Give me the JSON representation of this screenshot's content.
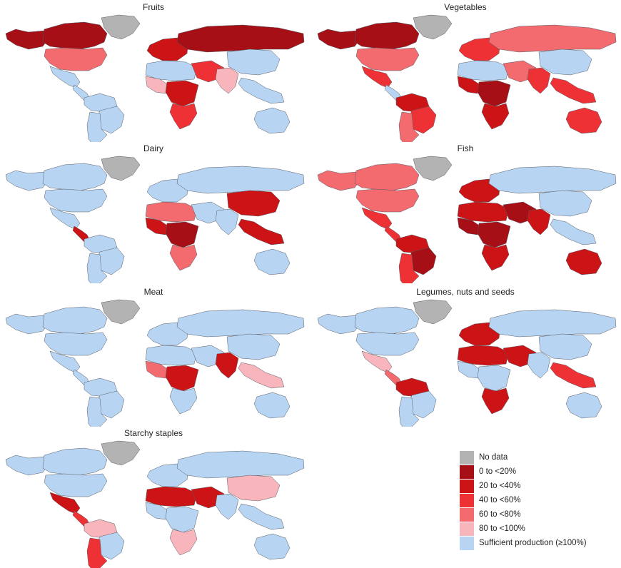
{
  "colors": {
    "no_data": "#b3b3b3",
    "c0": "#a50f15",
    "c20": "#cc1417",
    "c40": "#ee3134",
    "c60": "#f36b6e",
    "c80": "#f8b5bb",
    "ok": "#b7d5f3",
    "border": "#555b66"
  },
  "panels": [
    {
      "id": "fruits",
      "title": "Fruits",
      "fills": {
        "na": "c0",
        "ca": "c0",
        "gl": "no_data",
        "us": "c60",
        "mx": "ok",
        "ca_am": "ok",
        "sa_n": "ok",
        "sa_e": "ok",
        "sa_s": "ok",
        "eu": "c20",
        "ru": "c0",
        "africa_n": "ok",
        "africa_w": "c80",
        "africa_c": "c20",
        "africa_s": "c40",
        "mideast": "c40",
        "india": "c80",
        "china": "ok",
        "sea": "ok",
        "aus": "ok"
      }
    },
    {
      "id": "vegetables",
      "title": "Vegetables",
      "fills": {
        "na": "c0",
        "ca": "c0",
        "gl": "no_data",
        "us": "c60",
        "mx": "c40",
        "ca_am": "ok",
        "sa_n": "c20",
        "sa_e": "c40",
        "sa_s": "c60",
        "eu": "c40",
        "ru": "c60",
        "africa_n": "ok",
        "africa_w": "c20",
        "africa_c": "c0",
        "africa_s": "c20",
        "mideast": "c60",
        "india": "c40",
        "china": "ok",
        "sea": "c40",
        "aus": "c40"
      }
    },
    {
      "id": "dairy",
      "title": "Dairy",
      "fills": {
        "na": "ok",
        "ca": "ok",
        "gl": "no_data",
        "us": "ok",
        "mx": "ok",
        "ca_am": "c20",
        "sa_n": "ok",
        "sa_e": "ok",
        "sa_s": "ok",
        "eu": "ok",
        "ru": "ok",
        "africa_n": "c60",
        "africa_w": "c20",
        "africa_c": "c0",
        "africa_s": "c60",
        "mideast": "ok",
        "india": "ok",
        "china": "c20",
        "sea": "c20",
        "aus": "ok"
      }
    },
    {
      "id": "fish",
      "title": "Fish",
      "fills": {
        "na": "c60",
        "ca": "c60",
        "gl": "no_data",
        "us": "c60",
        "mx": "c40",
        "ca_am": "c40",
        "sa_n": "c20",
        "sa_e": "c0",
        "sa_s": "c40",
        "eu": "c20",
        "ru": "ok",
        "africa_n": "c20",
        "africa_w": "c0",
        "africa_c": "c0",
        "africa_s": "c20",
        "mideast": "c0",
        "india": "c20",
        "china": "ok",
        "sea": "ok",
        "aus": "c20"
      }
    },
    {
      "id": "meat",
      "title": "Meat",
      "fills": {
        "na": "ok",
        "ca": "ok",
        "gl": "no_data",
        "us": "ok",
        "mx": "ok",
        "ca_am": "ok",
        "sa_n": "ok",
        "sa_e": "ok",
        "sa_s": "ok",
        "eu": "ok",
        "ru": "ok",
        "africa_n": "ok",
        "africa_w": "c60",
        "africa_c": "c20",
        "africa_s": "ok",
        "mideast": "ok",
        "india": "c20",
        "china": "ok",
        "sea": "c80",
        "aus": "ok"
      }
    },
    {
      "id": "legumes",
      "title": "Legumes, nuts and seeds",
      "fills": {
        "na": "ok",
        "ca": "ok",
        "gl": "no_data",
        "us": "ok",
        "mx": "c80",
        "ca_am": "c60",
        "sa_n": "c20",
        "sa_e": "ok",
        "sa_s": "ok",
        "eu": "c20",
        "ru": "ok",
        "africa_n": "c20",
        "africa_w": "ok",
        "africa_c": "ok",
        "africa_s": "c20",
        "mideast": "c20",
        "india": "ok",
        "china": "ok",
        "sea": "c40",
        "aus": "ok"
      }
    },
    {
      "id": "starchy",
      "title": "Starchy staples",
      "fills": {
        "na": "ok",
        "ca": "ok",
        "gl": "no_data",
        "us": "ok",
        "mx": "c20",
        "ca_am": "c40",
        "sa_n": "c80",
        "sa_e": "ok",
        "sa_s": "c40",
        "eu": "ok",
        "ru": "ok",
        "africa_n": "c20",
        "africa_w": "ok",
        "africa_c": "ok",
        "africa_s": "c80",
        "mideast": "c20",
        "india": "ok",
        "china": "c80",
        "sea": "ok",
        "aus": "ok"
      }
    }
  ],
  "legend": [
    {
      "label": "No data",
      "color": "no_data"
    },
    {
      "label": "0 to <20%",
      "color": "c0"
    },
    {
      "label": "20 to <40%",
      "color": "c20"
    },
    {
      "label": "40 to <60%",
      "color": "c40"
    },
    {
      "label": "60 to <80%",
      "color": "c60"
    },
    {
      "label": "80 to <100%",
      "color": "c80"
    },
    {
      "label": "Sufficient production (≥100%)",
      "color": "ok"
    }
  ]
}
